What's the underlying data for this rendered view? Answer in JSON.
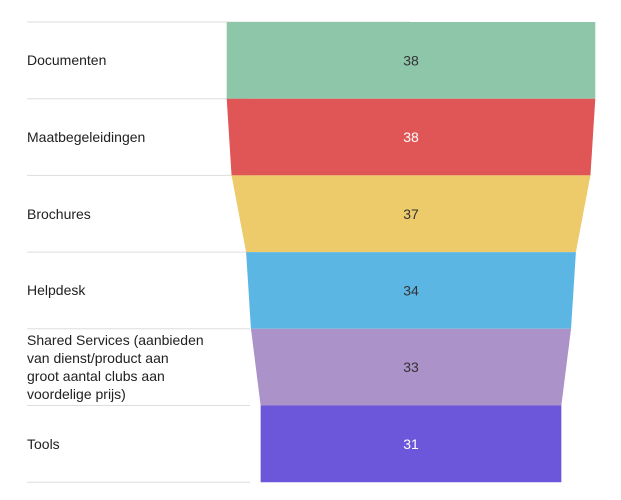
{
  "chart_data": {
    "type": "funnel",
    "categories": [
      "Documenten",
      "Maatbegeleidingen",
      "Brochures",
      "Helpdesk",
      "Shared Services (aanbieden van dienst/product aan groot aantal clubs aan voordelige prijs)",
      "Tools"
    ],
    "category_lines": [
      [
        "Documenten"
      ],
      [
        "Maatbegeleidingen"
      ],
      [
        "Brochures"
      ],
      [
        "Helpdesk"
      ],
      [
        "Shared Services (aanbieden",
        "van dienst/product aan",
        "groot aantal clubs aan",
        "voordelige prijs)"
      ],
      [
        "Tools"
      ]
    ],
    "values": [
      38,
      38,
      37,
      34,
      33,
      31
    ],
    "colors": [
      "#8ec6a9",
      "#e05656",
      "#eecb6a",
      "#5cb6e4",
      "#ab92c8",
      "#6c57db"
    ],
    "label_colors": [
      "#333333",
      "#ffffff",
      "#333333",
      "#333333",
      "#333333",
      "#ffffff"
    ]
  }
}
